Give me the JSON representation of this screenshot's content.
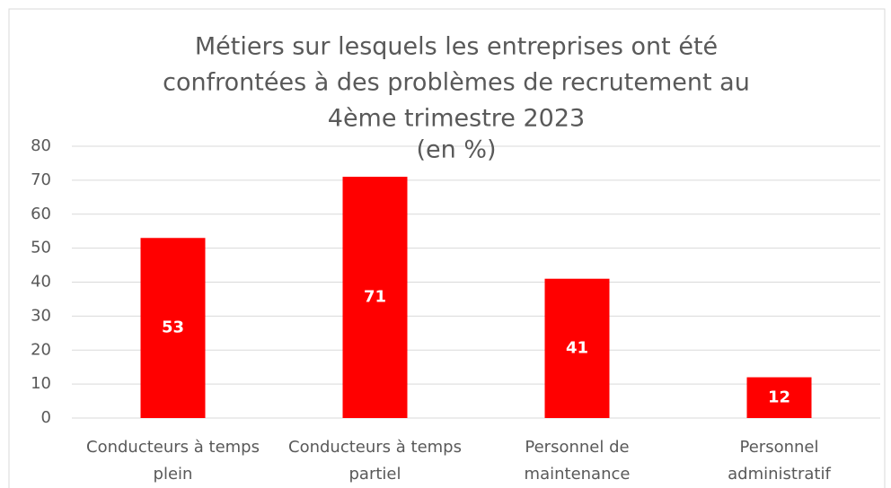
{
  "chart_data": {
    "type": "bar",
    "title": [
      "Métiers sur lesquels les entreprises ont été",
      "confrontées à des problèmes de recrutement au",
      "4ème trimestre 2023"
    ],
    "subtitle": "(en %)",
    "categories": [
      [
        "Conducteurs à temps",
        "plein"
      ],
      [
        "Conducteurs à temps",
        "partiel"
      ],
      [
        "Personnel de",
        "maintenance"
      ],
      [
        "Personnel",
        "administratif"
      ]
    ],
    "values": [
      53,
      71,
      41,
      12
    ],
    "color": "#ff0000",
    "ylim": [
      0,
      80
    ],
    "yticks": [
      0,
      10,
      20,
      30,
      40,
      50,
      60,
      70,
      80
    ],
    "grid": true
  }
}
